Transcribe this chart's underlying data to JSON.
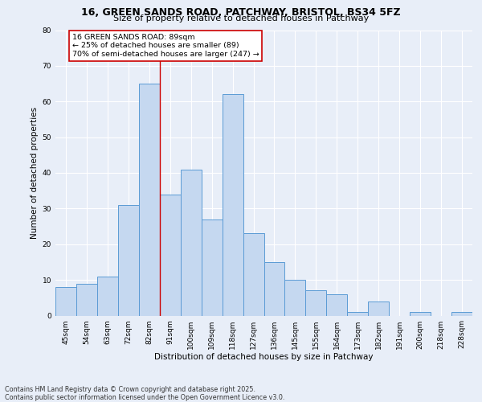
{
  "title_line1": "16, GREEN SANDS ROAD, PATCHWAY, BRISTOL, BS34 5FZ",
  "title_line2": "Size of property relative to detached houses in Patchway",
  "xlabel": "Distribution of detached houses by size in Patchway",
  "ylabel": "Number of detached properties",
  "categories": [
    "45sqm",
    "54sqm",
    "63sqm",
    "72sqm",
    "82sqm",
    "91sqm",
    "100sqm",
    "109sqm",
    "118sqm",
    "127sqm",
    "136sqm",
    "145sqm",
    "155sqm",
    "164sqm",
    "173sqm",
    "182sqm",
    "191sqm",
    "200sqm",
    "218sqm",
    "228sqm"
  ],
  "values": [
    8,
    9,
    11,
    31,
    65,
    34,
    41,
    27,
    62,
    23,
    15,
    10,
    7,
    6,
    1,
    4,
    0,
    1,
    0,
    1
  ],
  "bar_color": "#c5d8f0",
  "bar_edge_color": "#5b9bd5",
  "vline_x_index": 4.5,
  "vline_color": "#cc0000",
  "annotation_text": "16 GREEN SANDS ROAD: 89sqm\n← 25% of detached houses are smaller (89)\n70% of semi-detached houses are larger (247) →",
  "annotation_box_color": "#ffffff",
  "annotation_box_edge": "#cc0000",
  "ylim": [
    0,
    80
  ],
  "yticks": [
    0,
    10,
    20,
    30,
    40,
    50,
    60,
    70,
    80
  ],
  "footer_text": "Contains HM Land Registry data © Crown copyright and database right 2025.\nContains public sector information licensed under the Open Government Licence v3.0.",
  "background_color": "#e8eef8",
  "plot_bg_color": "#e8eef8",
  "grid_color": "#ffffff",
  "title_fontsize": 9,
  "subtitle_fontsize": 8,
  "axis_label_fontsize": 7.5,
  "tick_fontsize": 6.5,
  "annotation_fontsize": 6.8,
  "footer_fontsize": 5.8
}
